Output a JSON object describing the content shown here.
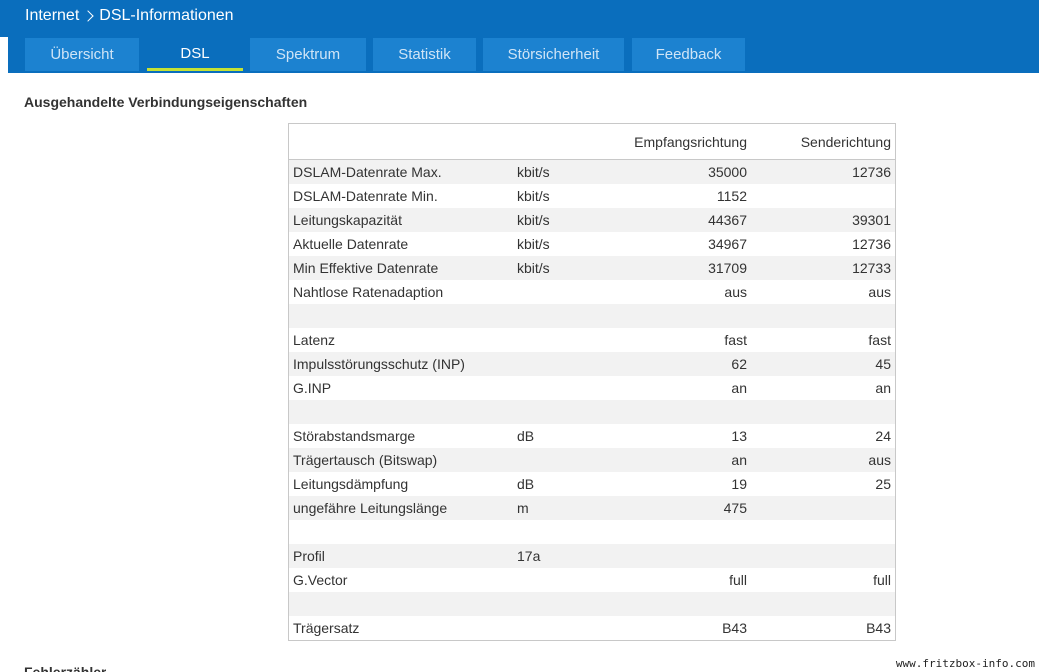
{
  "breadcrumb": {
    "parent": "Internet",
    "current": "DSL-Informationen"
  },
  "tabs": [
    {
      "label": "Übersicht",
      "active": false
    },
    {
      "label": "DSL",
      "active": true
    },
    {
      "label": "Spektrum",
      "active": false
    },
    {
      "label": "Statistik",
      "active": false
    },
    {
      "label": "Störsicherheit",
      "active": false
    },
    {
      "label": "Feedback",
      "active": false
    }
  ],
  "section": {
    "title": "Ausgehandelte Verbindungseigenschaften",
    "next_title": "Fehlerzähler"
  },
  "table": {
    "headers": {
      "downstream": "Empfangsrichtung",
      "upstream": "Senderichtung"
    },
    "rows": [
      {
        "label": "DSLAM-Datenrate Max.",
        "unit": "kbit/s",
        "down": "35000",
        "up": "12736"
      },
      {
        "label": "DSLAM-Datenrate Min.",
        "unit": "kbit/s",
        "down": "1152",
        "up": ""
      },
      {
        "label": "Leitungskapazität",
        "unit": "kbit/s",
        "down": "44367",
        "up": "39301"
      },
      {
        "label": "Aktuelle Datenrate",
        "unit": "kbit/s",
        "down": "34967",
        "up": "12736"
      },
      {
        "label": "Min Effektive Datenrate",
        "unit": "kbit/s",
        "down": "31709",
        "up": "12733"
      },
      {
        "label": "Nahtlose Ratenadaption",
        "unit": "",
        "down": "aus",
        "up": "aus"
      },
      {
        "label": "",
        "unit": "",
        "down": "",
        "up": ""
      },
      {
        "label": "Latenz",
        "unit": "",
        "down": "fast",
        "up": "fast"
      },
      {
        "label": "Impulsstörungsschutz (INP)",
        "unit": "",
        "down": "62",
        "up": "45"
      },
      {
        "label": "G.INP",
        "unit": "",
        "down": "an",
        "up": "an"
      },
      {
        "label": "",
        "unit": "",
        "down": "",
        "up": ""
      },
      {
        "label": "Störabstandsmarge",
        "unit": "dB",
        "down": "13",
        "up": "24"
      },
      {
        "label": "Trägertausch (Bitswap)",
        "unit": "",
        "down": "an",
        "up": "aus"
      },
      {
        "label": "Leitungsdämpfung",
        "unit": "dB",
        "down": "19",
        "up": "25"
      },
      {
        "label": "ungefähre Leitungslänge",
        "unit": "m",
        "down": "475",
        "up": ""
      },
      {
        "label": "",
        "unit": "",
        "down": "",
        "up": ""
      },
      {
        "label": "Profil",
        "unit": "17a",
        "down": "",
        "up": ""
      },
      {
        "label": "G.Vector",
        "unit": "",
        "down": "full",
        "up": "full"
      },
      {
        "label": "",
        "unit": "",
        "down": "",
        "up": ""
      },
      {
        "label": "Trägersatz",
        "unit": "",
        "down": "B43",
        "up": "B43"
      }
    ]
  },
  "watermark": "www.fritzbox-info.com",
  "colors": {
    "header_bg": "#0a6ebd",
    "tab_bg": "#1c82d0",
    "active_underline": "#c6e234",
    "row_alt": "#f2f2f2",
    "table_border": "#c8c8c8"
  }
}
